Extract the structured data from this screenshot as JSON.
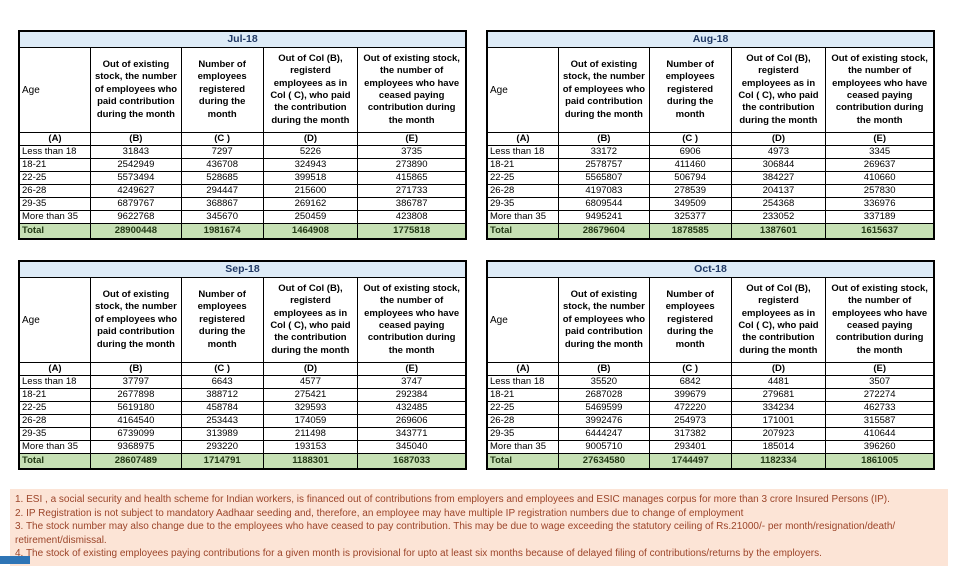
{
  "colors": {
    "month_header_bg": "#DDEBF7",
    "month_header_text": "#1F3864",
    "total_row_bg": "#C6E0B4",
    "footnote_bg": "#FCE4D6",
    "footnote_text": "#9C452A",
    "tab_blue": "#2E75B6"
  },
  "table_columns": {
    "age_label": "Age",
    "col_b": "Out of existing stock, the number of employees who paid contribution during the month",
    "col_c": "Number of employees registered during the month",
    "col_d": "Out of Col (B), registerd employees as in Col ( C), who paid the contribution during the month",
    "col_e": "Out of existing stock, the number of employees who have ceased paying contribution during the month",
    "letter_row": [
      "(A)",
      "(B)",
      "(C )",
      "(D)",
      "(E)"
    ]
  },
  "tables": [
    {
      "month": "Jul-18",
      "rows": [
        [
          "Less than 18",
          "31843",
          "7297",
          "5226",
          "3735"
        ],
        [
          "18-21",
          "2542949",
          "436708",
          "324943",
          "273890"
        ],
        [
          "22-25",
          "5573494",
          "528685",
          "399518",
          "415865"
        ],
        [
          "26-28",
          "4249627",
          "294447",
          "215600",
          "271733"
        ],
        [
          "29-35",
          "6879767",
          "368867",
          "269162",
          "386787"
        ],
        [
          "More than 35",
          "9622768",
          "345670",
          "250459",
          "423808"
        ]
      ],
      "total": [
        "Total",
        "28900448",
        "1981674",
        "1464908",
        "1775818"
      ]
    },
    {
      "month": "Aug-18",
      "rows": [
        [
          "Less than 18",
          "33172",
          "6906",
          "4973",
          "3345"
        ],
        [
          "18-21",
          "2578757",
          "411460",
          "306844",
          "269637"
        ],
        [
          "22-25",
          "5565807",
          "506794",
          "384227",
          "410660"
        ],
        [
          "26-28",
          "4197083",
          "278539",
          "204137",
          "257830"
        ],
        [
          "29-35",
          "6809544",
          "349509",
          "254368",
          "336976"
        ],
        [
          "More than 35",
          "9495241",
          "325377",
          "233052",
          "337189"
        ]
      ],
      "total": [
        "Total",
        "28679604",
        "1878585",
        "1387601",
        "1615637"
      ]
    },
    {
      "month": "Sep-18",
      "rows": [
        [
          "Less than 18",
          "37797",
          "6643",
          "4577",
          "3747"
        ],
        [
          "18-21",
          "2677898",
          "388712",
          "275421",
          "292384"
        ],
        [
          "22-25",
          "5619180",
          "458784",
          "329593",
          "432485"
        ],
        [
          "26-28",
          "4164540",
          "253443",
          "174059",
          "269606"
        ],
        [
          "29-35",
          "6739099",
          "313989",
          "211498",
          "343771"
        ],
        [
          "More than 35",
          "9368975",
          "293220",
          "193153",
          "345040"
        ]
      ],
      "total": [
        "Total",
        "28607489",
        "1714791",
        "1188301",
        "1687033"
      ]
    },
    {
      "month": "Oct-18",
      "rows": [
        [
          "Less than 18",
          "35520",
          "6842",
          "4481",
          "3507"
        ],
        [
          "18-21",
          "2687028",
          "399679",
          "279681",
          "272274"
        ],
        [
          "22-25",
          "5469599",
          "472220",
          "334234",
          "462733"
        ],
        [
          "26-28",
          "3992476",
          "254973",
          "171001",
          "315587"
        ],
        [
          "29-35",
          "6444247",
          "317382",
          "207923",
          "410644"
        ],
        [
          "More than 35",
          "9005710",
          "293401",
          "185014",
          "396260"
        ]
      ],
      "total": [
        "Total",
        "27634580",
        "1744497",
        "1182334",
        "1861005"
      ]
    }
  ],
  "footnotes": [
    "1. ESI , a social security and health scheme for Indian workers, is financed out of contributions from employers and employees and ESIC manages corpus for more than 3 crore Insured Persons (IP).",
    "2. IP Registration is not subject to mandatory Aadhaar seeding and, therefore, an employee may have multiple IP registration numbers due to change of employment",
    "3. The stock number may also change due to the employees who have ceased to pay contribution. This may be due to wage exceeding the statutory ceiling of Rs.21000/- per month/resignation/death/ retirement/dismissal.",
    "4. The stock of existing employees paying contributions for a given month is provisional for upto at least six months because of delayed filing of contributions/returns by the employers."
  ]
}
